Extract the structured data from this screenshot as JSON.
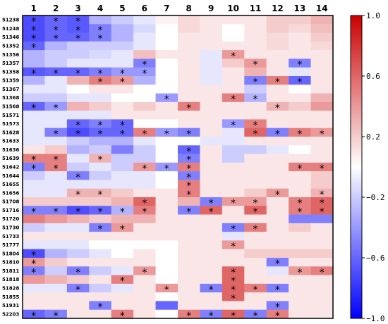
{
  "chart_data": {
    "type": "heatmap",
    "columns": [
      "1",
      "2",
      "3",
      "4",
      "5",
      "6",
      "7",
      "8",
      "9",
      "10",
      "11",
      "12",
      "13",
      "14"
    ],
    "rows": [
      "51238",
      "51248",
      "51346",
      "51352",
      "51356",
      "51357",
      "51358",
      "51359",
      "51367",
      "51368",
      "51568",
      "51571",
      "51573",
      "51628",
      "51633",
      "51636",
      "51639",
      "51642",
      "51644",
      "51655",
      "51656",
      "51708",
      "51716",
      "51720",
      "51730",
      "51733",
      "51777",
      "51804",
      "51810",
      "51811",
      "51818",
      "51828",
      "51855",
      "51931",
      "52203"
    ],
    "values": [
      [
        -0.7,
        -0.6,
        -0.65,
        -0.3,
        -0.2,
        -0.1,
        0.05,
        0.15,
        0.1,
        0.1,
        0.1,
        0.2,
        0.2,
        0.3
      ],
      [
        -0.7,
        -0.6,
        -0.65,
        -0.5,
        -0.3,
        -0.15,
        0.0,
        0.15,
        0.1,
        0.0,
        0.1,
        0.2,
        0.15,
        0.25
      ],
      [
        -0.7,
        -0.6,
        -0.6,
        -0.5,
        -0.3,
        -0.1,
        0.0,
        0.1,
        0.1,
        0.0,
        0.1,
        0.15,
        0.1,
        0.2
      ],
      [
        -0.6,
        -0.3,
        -0.2,
        -0.2,
        -0.2,
        -0.1,
        0.0,
        0.1,
        0.1,
        0.1,
        0.1,
        0.15,
        0.1,
        0.15
      ],
      [
        -0.3,
        -0.2,
        -0.2,
        -0.15,
        -0.1,
        0.25,
        0.1,
        0.1,
        -0.1,
        0.4,
        0.1,
        0.1,
        0.1,
        0.1
      ],
      [
        -0.3,
        -0.2,
        -0.1,
        -0.1,
        -0.1,
        -0.5,
        0.0,
        0.1,
        -0.1,
        0.2,
        0.4,
        0.1,
        -0.5,
        0.1
      ],
      [
        -0.65,
        -0.6,
        -0.6,
        -0.5,
        -0.4,
        -0.4,
        0.0,
        0.1,
        -0.1,
        0.1,
        0.3,
        0.1,
        -0.1,
        0.1
      ],
      [
        -0.3,
        -0.1,
        0.3,
        0.5,
        0.4,
        -0.3,
        0.0,
        0.1,
        -0.1,
        0.1,
        -0.5,
        0.5,
        -0.6,
        0.1
      ],
      [
        -0.1,
        -0.1,
        0.0,
        0.1,
        0.1,
        0.0,
        0.0,
        0.1,
        0.1,
        0.1,
        -0.2,
        0.1,
        0.0,
        0.1
      ],
      [
        -0.2,
        -0.2,
        -0.1,
        -0.1,
        0.0,
        0.0,
        -0.4,
        0.1,
        0.1,
        0.5,
        -0.3,
        0.1,
        0.1,
        0.3
      ],
      [
        -0.6,
        -0.4,
        0.3,
        0.2,
        0.1,
        0.2,
        0.1,
        0.5,
        0.1,
        0.1,
        0.1,
        0.3,
        0.2,
        0.4
      ],
      [
        -0.1,
        -0.1,
        -0.1,
        -0.1,
        0.1,
        0.1,
        0.1,
        0.1,
        0.1,
        0.1,
        0.1,
        0.1,
        0.1,
        0.1
      ],
      [
        -0.1,
        -0.1,
        -0.6,
        -0.5,
        -0.6,
        0.0,
        0.0,
        0.1,
        0.1,
        -0.4,
        0.5,
        0.1,
        0.1,
        0.1
      ],
      [
        -0.1,
        -0.5,
        -0.7,
        -0.6,
        -0.6,
        0.5,
        -0.4,
        -0.5,
        0.1,
        -0.1,
        0.6,
        -0.5,
        0.5,
        0.4
      ],
      [
        -0.1,
        -0.1,
        -0.2,
        -0.3,
        -0.3,
        -0.1,
        0.0,
        0.0,
        -0.1,
        -0.1,
        0.1,
        0.1,
        0.1,
        0.1
      ],
      [
        0.1,
        0.2,
        -0.3,
        -0.2,
        -0.5,
        -0.2,
        0.0,
        -0.6,
        0.1,
        -0.2,
        -0.2,
        -0.1,
        0.0,
        0.1
      ],
      [
        0.5,
        0.5,
        -0.1,
        0.3,
        -0.2,
        -0.2,
        0.0,
        -0.5,
        0.1,
        -0.2,
        0.1,
        0.1,
        0.1,
        0.1
      ],
      [
        -0.5,
        0.5,
        -0.2,
        -0.1,
        -0.2,
        0.4,
        -0.4,
        0.5,
        0.1,
        0.1,
        0.1,
        0.1,
        0.5,
        0.5
      ],
      [
        -0.2,
        -0.1,
        -0.5,
        -0.2,
        -0.1,
        -0.1,
        0.0,
        -0.5,
        0.1,
        0.1,
        0.1,
        0.1,
        0.1,
        0.2
      ],
      [
        -0.1,
        -0.1,
        -0.1,
        -0.1,
        -0.1,
        -0.1,
        0.0,
        0.5,
        0.1,
        0.1,
        0.1,
        0.1,
        0.1,
        0.2
      ],
      [
        -0.1,
        -0.1,
        0.3,
        0.3,
        0.2,
        0.1,
        0.1,
        0.5,
        0.1,
        0.1,
        0.2,
        0.4,
        0.1,
        0.3
      ],
      [
        0.2,
        0.2,
        0.2,
        0.2,
        0.3,
        0.6,
        0.1,
        0.3,
        -0.5,
        0.4,
        0.4,
        0.1,
        0.5,
        0.6
      ],
      [
        -0.5,
        -0.5,
        -0.7,
        -0.6,
        -0.3,
        0.5,
        0.1,
        -0.5,
        0.6,
        0.1,
        0.6,
        0.1,
        0.5,
        0.6
      ],
      [
        0.5,
        0.4,
        0.3,
        0.2,
        0.3,
        0.3,
        0.1,
        0.1,
        0.1,
        0.1,
        0.1,
        0.1,
        -0.5,
        -0.5
      ],
      [
        -0.2,
        -0.1,
        -0.1,
        -0.5,
        0.4,
        0.1,
        0.1,
        0.1,
        0.1,
        -0.5,
        0.5,
        0.1,
        0.2,
        0.1
      ],
      [
        0.1,
        0.1,
        0.1,
        0.1,
        0.1,
        0.1,
        0.1,
        0.1,
        0.1,
        -0.1,
        0.1,
        0.1,
        0.1,
        0.1
      ],
      [
        -0.1,
        -0.1,
        -0.1,
        0.0,
        0.0,
        0.0,
        0.0,
        0.1,
        0.1,
        0.4,
        0.1,
        0.1,
        0.1,
        0.1
      ],
      [
        -0.7,
        -0.3,
        -0.2,
        -0.1,
        0.0,
        0.1,
        0.0,
        0.1,
        0.1,
        0.1,
        0.2,
        0.2,
        0.2,
        0.2
      ],
      [
        0.4,
        0.2,
        0.1,
        0.1,
        0.1,
        0.1,
        0.0,
        0.1,
        0.1,
        0.1,
        0.1,
        -0.5,
        0.1,
        0.1
      ],
      [
        -0.5,
        -0.2,
        -0.5,
        -0.2,
        -0.1,
        0.4,
        0.0,
        0.1,
        0.1,
        0.6,
        0.1,
        -0.1,
        0.4,
        0.5
      ],
      [
        0.4,
        0.3,
        0.2,
        0.1,
        0.5,
        0.1,
        0.0,
        0.1,
        0.1,
        0.6,
        0.1,
        0.1,
        0.1,
        0.1
      ],
      [
        -0.1,
        -0.1,
        -0.5,
        -0.2,
        -0.1,
        0.1,
        0.4,
        0.1,
        -0.5,
        0.6,
        0.5,
        -0.5,
        0.1,
        0.1
      ],
      [
        0.1,
        0.1,
        0.1,
        0.1,
        0.1,
        0.1,
        0.0,
        0.1,
        0.1,
        0.6,
        0.1,
        0.1,
        0.1,
        0.1
      ],
      [
        0.1,
        0.1,
        0.1,
        -0.5,
        0.1,
        0.1,
        -0.6,
        0.1,
        0.1,
        0.1,
        0.1,
        -0.5,
        0.1,
        0.1
      ],
      [
        -0.6,
        -0.5,
        0.1,
        0.1,
        0.5,
        0.1,
        0.0,
        0.5,
        -0.5,
        0.6,
        -0.5,
        0.5,
        0.1,
        0.1
      ]
    ],
    "significant": [
      [
        1,
        1,
        1,
        0,
        0,
        0,
        0,
        0,
        0,
        0,
        0,
        0,
        0,
        0
      ],
      [
        1,
        1,
        1,
        1,
        0,
        0,
        0,
        0,
        0,
        0,
        0,
        0,
        0,
        0
      ],
      [
        1,
        1,
        1,
        1,
        0,
        0,
        0,
        0,
        0,
        0,
        0,
        0,
        0,
        0
      ],
      [
        1,
        0,
        0,
        0,
        0,
        0,
        0,
        0,
        0,
        0,
        0,
        0,
        0,
        0
      ],
      [
        0,
        0,
        0,
        0,
        0,
        0,
        0,
        0,
        0,
        1,
        0,
        0,
        0,
        0
      ],
      [
        0,
        0,
        0,
        0,
        0,
        1,
        0,
        0,
        0,
        0,
        1,
        0,
        1,
        0
      ],
      [
        1,
        1,
        1,
        1,
        1,
        1,
        0,
        0,
        0,
        0,
        0,
        0,
        0,
        0
      ],
      [
        0,
        0,
        0,
        1,
        1,
        0,
        0,
        0,
        0,
        0,
        1,
        1,
        1,
        0
      ],
      [
        0,
        0,
        0,
        0,
        0,
        0,
        0,
        0,
        0,
        0,
        0,
        0,
        0,
        0
      ],
      [
        0,
        0,
        0,
        0,
        0,
        0,
        1,
        0,
        0,
        1,
        1,
        0,
        0,
        0
      ],
      [
        1,
        1,
        0,
        0,
        0,
        0,
        0,
        1,
        0,
        0,
        0,
        1,
        0,
        0
      ],
      [
        0,
        0,
        0,
        0,
        0,
        0,
        0,
        0,
        0,
        0,
        0,
        0,
        0,
        0
      ],
      [
        0,
        0,
        1,
        1,
        1,
        0,
        0,
        0,
        0,
        1,
        1,
        0,
        0,
        0
      ],
      [
        0,
        1,
        1,
        1,
        1,
        1,
        1,
        1,
        0,
        0,
        1,
        1,
        1,
        1
      ],
      [
        0,
        0,
        0,
        0,
        0,
        0,
        0,
        0,
        0,
        0,
        0,
        0,
        0,
        0
      ],
      [
        0,
        0,
        0,
        0,
        0,
        0,
        0,
        1,
        0,
        0,
        0,
        0,
        0,
        0
      ],
      [
        1,
        1,
        0,
        1,
        0,
        0,
        0,
        1,
        0,
        0,
        0,
        0,
        0,
        0
      ],
      [
        1,
        1,
        0,
        0,
        0,
        1,
        1,
        1,
        0,
        0,
        0,
        0,
        1,
        1
      ],
      [
        0,
        0,
        1,
        0,
        0,
        0,
        0,
        1,
        0,
        0,
        0,
        0,
        0,
        0
      ],
      [
        0,
        0,
        0,
        0,
        0,
        0,
        0,
        1,
        0,
        0,
        0,
        0,
        0,
        0
      ],
      [
        0,
        0,
        1,
        1,
        0,
        0,
        0,
        1,
        0,
        0,
        0,
        1,
        0,
        1
      ],
      [
        0,
        0,
        0,
        0,
        0,
        1,
        0,
        0,
        1,
        1,
        1,
        0,
        1,
        1
      ],
      [
        1,
        1,
        1,
        1,
        1,
        1,
        0,
        1,
        1,
        0,
        1,
        0,
        1,
        1
      ],
      [
        0,
        0,
        0,
        0,
        0,
        0,
        0,
        0,
        0,
        0,
        0,
        0,
        0,
        0
      ],
      [
        0,
        0,
        0,
        1,
        1,
        0,
        0,
        0,
        0,
        1,
        1,
        0,
        0,
        0
      ],
      [
        0,
        0,
        0,
        0,
        0,
        0,
        0,
        0,
        0,
        0,
        0,
        0,
        0,
        0
      ],
      [
        0,
        0,
        0,
        0,
        0,
        0,
        0,
        0,
        0,
        1,
        0,
        0,
        0,
        0
      ],
      [
        1,
        0,
        0,
        0,
        0,
        0,
        0,
        0,
        0,
        0,
        0,
        0,
        0,
        0
      ],
      [
        1,
        0,
        0,
        0,
        0,
        0,
        0,
        0,
        0,
        0,
        0,
        1,
        0,
        0
      ],
      [
        1,
        0,
        1,
        0,
        0,
        1,
        0,
        0,
        0,
        1,
        0,
        0,
        1,
        1
      ],
      [
        0,
        0,
        0,
        0,
        1,
        0,
        0,
        0,
        0,
        1,
        0,
        0,
        0,
        0
      ],
      [
        0,
        0,
        1,
        0,
        0,
        0,
        1,
        0,
        1,
        1,
        1,
        1,
        0,
        0
      ],
      [
        0,
        0,
        0,
        0,
        0,
        0,
        0,
        0,
        0,
        1,
        0,
        0,
        0,
        0
      ],
      [
        0,
        0,
        0,
        1,
        0,
        0,
        0,
        0,
        0,
        0,
        0,
        1,
        0,
        0
      ],
      [
        1,
        1,
        0,
        0,
        1,
        0,
        0,
        1,
        1,
        1,
        1,
        1,
        0,
        0
      ]
    ],
    "significance_marker": "*",
    "colorbar": {
      "min": -1.0,
      "max": 1.0,
      "ticks": [
        1.0,
        0.6,
        0.2,
        -0.2,
        -0.6,
        -1.0
      ],
      "tick_labels": [
        "1.0",
        "0.6",
        "0.2",
        "−0.2",
        "−0.6",
        "−1.0"
      ],
      "low_color": "#0000ff",
      "mid_color": "#ffffff",
      "high_color": "#cc0000",
      "placement": "right"
    },
    "title": "",
    "xlabel": "",
    "ylabel": ""
  }
}
